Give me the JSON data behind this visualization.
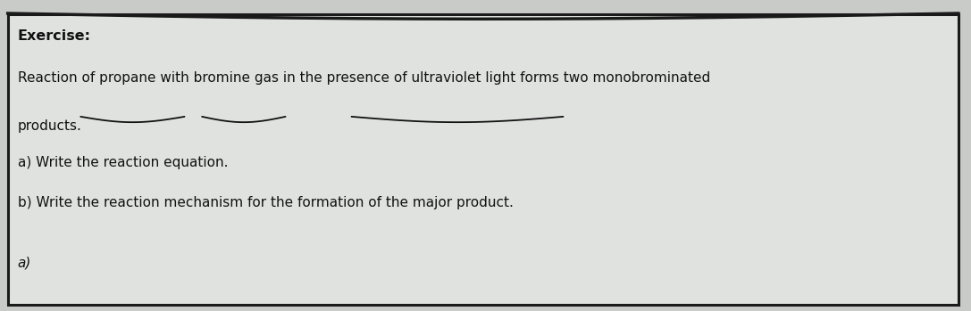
{
  "bg_color": "#c8cbc8",
  "box_color": "#e0e2e0",
  "border_color": "#1a1a1a",
  "title": "Exercise:",
  "line1": "Reaction of propane with bromine gas in the presence of ultraviolet light forms two monobrominated",
  "line2": "products.",
  "line3": "a) Write the reaction equation.",
  "line4": "b) Write the reaction mechanism for the formation of the major product.",
  "footer": "a)",
  "title_fontsize": 11.5,
  "body_fontsize": 11,
  "footer_fontsize": 11
}
